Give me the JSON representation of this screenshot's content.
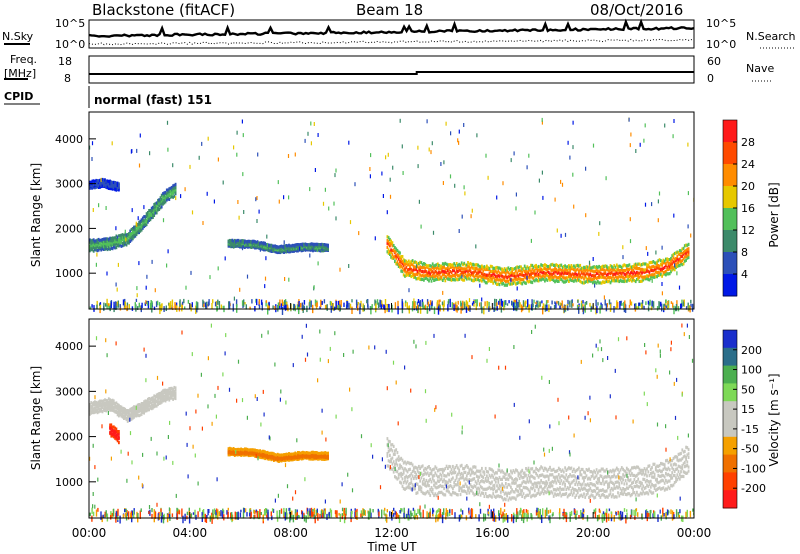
{
  "header": {
    "station": "Blackstone (fitACF)",
    "beam": "Beam 18",
    "date": "08/Oct/2016"
  },
  "panels": {
    "nsky_label": "N.Sky",
    "nsearch_label": "N.Search",
    "noise_ticks_left": [
      "10^5",
      "10^0"
    ],
    "noise_ticks_right": [
      "10^5",
      "10^0"
    ],
    "freq_label_top": "Freq.",
    "freq_label_unit": "[MHz]",
    "freq_ticks": [
      "18",
      "8"
    ],
    "nave_label": "Nave",
    "nave_ticks": [
      "60",
      "0"
    ],
    "cpid_label": "CPID",
    "cpid_value": "normal (fast) 151"
  },
  "colors": {
    "power_scale": [
      "#0018e6",
      "#2c50b8",
      "#3c8a6a",
      "#52c05a",
      "#e6c800",
      "#ff8c00",
      "#ff4a00",
      "#ff1a1a"
    ],
    "velocity_scale": [
      "#1a2fcc",
      "#2b6e8a",
      "#4caf50",
      "#7ed957",
      "#c8c8c0",
      "#c8c8c0",
      "#f5a000",
      "#f07000",
      "#ff4000",
      "#ff1a1a"
    ],
    "gray_scatter": "#c8c8c0"
  },
  "chart_data": [
    {
      "type": "heatmap",
      "title": "Power",
      "xlabel": "Time UT",
      "ylabel": "Slant Range [km]",
      "xlim": [
        "00:00",
        "24:00"
      ],
      "ylim": [
        200,
        4600
      ],
      "x_ticks": [
        "00:00",
        "04:00",
        "08:00",
        "12:00",
        "16:00",
        "20:00",
        "00:00"
      ],
      "y_ticks": [
        "4000",
        "3000",
        "2000",
        "1000"
      ],
      "colorbar_label": "Power [dB]",
      "colorbar_ticks": [
        "28",
        "24",
        "20",
        "16",
        "12",
        "8",
        "4"
      ],
      "colorbar_range": [
        0,
        32
      ],
      "bands": [
        {
          "t": [
            0.0,
            0.8,
            1.5,
            2.2,
            3.0,
            3.4
          ],
          "r": [
            1650,
            1700,
            1800,
            2200,
            2750,
            2900
          ],
          "w": 120,
          "value": 14
        },
        {
          "t": [
            0.0,
            0.5,
            1.2
          ],
          "r": [
            3000,
            3050,
            2950
          ],
          "w": 80,
          "value": 6
        },
        {
          "t": [
            5.5,
            6.5,
            7.5,
            8.5,
            9.5
          ],
          "r": [
            1700,
            1680,
            1560,
            1620,
            1600
          ],
          "w": 70,
          "value": 12
        },
        {
          "t": [
            11.8,
            12.5,
            13.5,
            15.0,
            16.5,
            18.0,
            20.0,
            22.0,
            23.0,
            23.8
          ],
          "r": [
            1700,
            1150,
            1050,
            1080,
            950,
            1050,
            1000,
            1050,
            1200,
            1550
          ],
          "w": 180,
          "value": 28
        }
      ]
    },
    {
      "type": "heatmap",
      "title": "Velocity",
      "xlabel": "Time UT",
      "ylabel": "Slant Range [km]",
      "xlim": [
        "00:00",
        "24:00"
      ],
      "ylim": [
        200,
        4600
      ],
      "x_ticks": [
        "00:00",
        "04:00",
        "08:00",
        "12:00",
        "16:00",
        "20:00",
        "00:00"
      ],
      "y_ticks": [
        "4000",
        "3000",
        "2000",
        "1000"
      ],
      "colorbar_label": "Velocity [m s⁻¹]",
      "colorbar_ticks": [
        "200",
        "100",
        "50",
        "15",
        "-15",
        "-50",
        "-100",
        "-200"
      ],
      "colorbar_range": [
        -250,
        250
      ],
      "bands": [
        {
          "t": [
            0.0,
            0.8,
            1.5,
            2.2,
            3.0,
            3.4
          ],
          "r": [
            2650,
            2750,
            2500,
            2700,
            2950,
            3000
          ],
          "w": 120,
          "value": 0
        },
        {
          "t": [
            5.5,
            6.5,
            7.5,
            8.5,
            9.5
          ],
          "r": [
            1700,
            1680,
            1560,
            1620,
            1600
          ],
          "w": 70,
          "value": -80
        },
        {
          "t": [
            0.8,
            1.2
          ],
          "r": [
            2200,
            2000
          ],
          "w": 120,
          "value": -200
        },
        {
          "t": [
            11.8,
            12.5,
            13.5,
            15.0,
            16.5,
            18.0,
            20.0,
            22.0,
            23.0,
            23.8
          ],
          "r": [
            1700,
            1150,
            1050,
            1080,
            950,
            1050,
            1000,
            1050,
            1200,
            1550
          ],
          "w": 300,
          "value": 0
        }
      ]
    }
  ]
}
